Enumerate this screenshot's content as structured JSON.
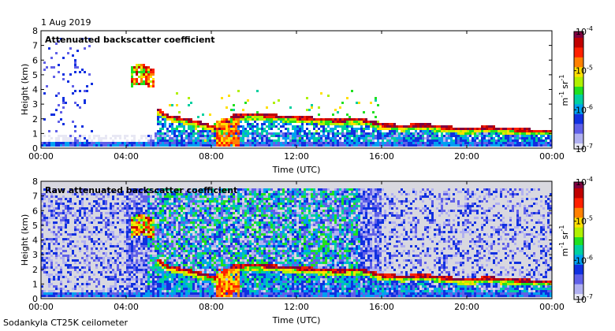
{
  "date_label": "1 Aug 2019",
  "footer_label": "Sodankyla CT25K ceilometer",
  "colors": {
    "background_grey": "#d8d8e0",
    "colormap": [
      "#e8e8f4",
      "#b0b0f0",
      "#6060e8",
      "#1030e0",
      "#00a0f0",
      "#00d0a0",
      "#20e020",
      "#b0f000",
      "#ffe000",
      "#ff8000",
      "#ff2000",
      "#c00000",
      "#800040"
    ]
  },
  "chart_data": [
    {
      "type": "heatmap",
      "title": "Attenuated backscatter coefficient",
      "xlabel": "Time (UTC)",
      "ylabel": "Height (km)",
      "xlim": [
        "00:00",
        "00:00"
      ],
      "ylim": [
        0,
        8
      ],
      "x_ticks": [
        "00:00",
        "04:00",
        "08:00",
        "12:00",
        "16:00",
        "20:00",
        "00:00"
      ],
      "y_ticks": [
        "0",
        "1",
        "2",
        "3",
        "4",
        "5",
        "6",
        "7",
        "8"
      ],
      "colorbar": {
        "scale": "log",
        "range": [
          1e-07,
          0.0001
        ],
        "tick_labels": [
          {
            "mant": "10",
            "exp": "-4"
          },
          {
            "mant": "10",
            "exp": "-5"
          },
          {
            "mant": "10",
            "exp": "-6"
          },
          {
            "mant": "10",
            "exp": "-7"
          }
        ],
        "unit": {
          "a": "m",
          "a_exp": "-1",
          "b": "sr",
          "b_exp": "-1"
        }
      },
      "layers": [
        {
          "name": "main_layer",
          "hours": [
            5.5,
            6,
            7,
            8,
            8.5,
            9,
            10,
            11,
            12,
            13,
            14,
            15,
            16,
            17,
            18,
            19,
            20,
            21,
            22,
            23,
            24
          ],
          "heights_km": [
            2.5,
            2.1,
            1.8,
            1.4,
            1.2,
            2.1,
            2.2,
            2.1,
            2.0,
            1.9,
            1.8,
            1.9,
            1.5,
            1.4,
            1.5,
            1.3,
            1.2,
            1.3,
            1.2,
            1.1,
            1.1
          ]
        },
        {
          "name": "elevated_cloud",
          "hours": [
            4.2,
            4.6,
            5.0,
            5.3
          ],
          "heights_km": [
            4.8,
            5.0,
            4.9,
            4.6
          ]
        }
      ]
    },
    {
      "type": "heatmap",
      "title": "Raw attenuated backscatter coefficient",
      "xlabel": "Time (UTC)",
      "ylabel": "Height (km)",
      "xlim": [
        "00:00",
        "00:00"
      ],
      "ylim": [
        0,
        8
      ],
      "x_ticks": [
        "00:00",
        "04:00",
        "08:00",
        "12:00",
        "16:00",
        "20:00",
        "00:00"
      ],
      "y_ticks": [
        "0",
        "1",
        "2",
        "3",
        "4",
        "5",
        "6",
        "7",
        "8"
      ],
      "colorbar": {
        "scale": "log",
        "range": [
          1e-07,
          0.0001
        ],
        "tick_labels": [
          {
            "mant": "10",
            "exp": "-4"
          },
          {
            "mant": "10",
            "exp": "-5"
          },
          {
            "mant": "10",
            "exp": "-6"
          },
          {
            "mant": "10",
            "exp": "-7"
          }
        ],
        "unit": {
          "a": "m",
          "a_exp": "-1",
          "b": "sr",
          "b_exp": "-1"
        }
      },
      "layers": [
        {
          "name": "main_layer",
          "hours": [
            5.5,
            6,
            7,
            8,
            8.5,
            9,
            10,
            11,
            12,
            13,
            14,
            15,
            16,
            17,
            18,
            19,
            20,
            21,
            22,
            23,
            24
          ],
          "heights_km": [
            2.5,
            2.1,
            1.8,
            1.4,
            1.2,
            2.1,
            2.2,
            2.1,
            2.0,
            1.9,
            1.8,
            1.9,
            1.5,
            1.4,
            1.5,
            1.3,
            1.2,
            1.3,
            1.2,
            1.1,
            1.1
          ]
        },
        {
          "name": "elevated_cloud",
          "hours": [
            4.2,
            4.6,
            5.0,
            5.3
          ],
          "heights_km": [
            4.8,
            5.0,
            4.9,
            4.6
          ]
        }
      ]
    }
  ]
}
